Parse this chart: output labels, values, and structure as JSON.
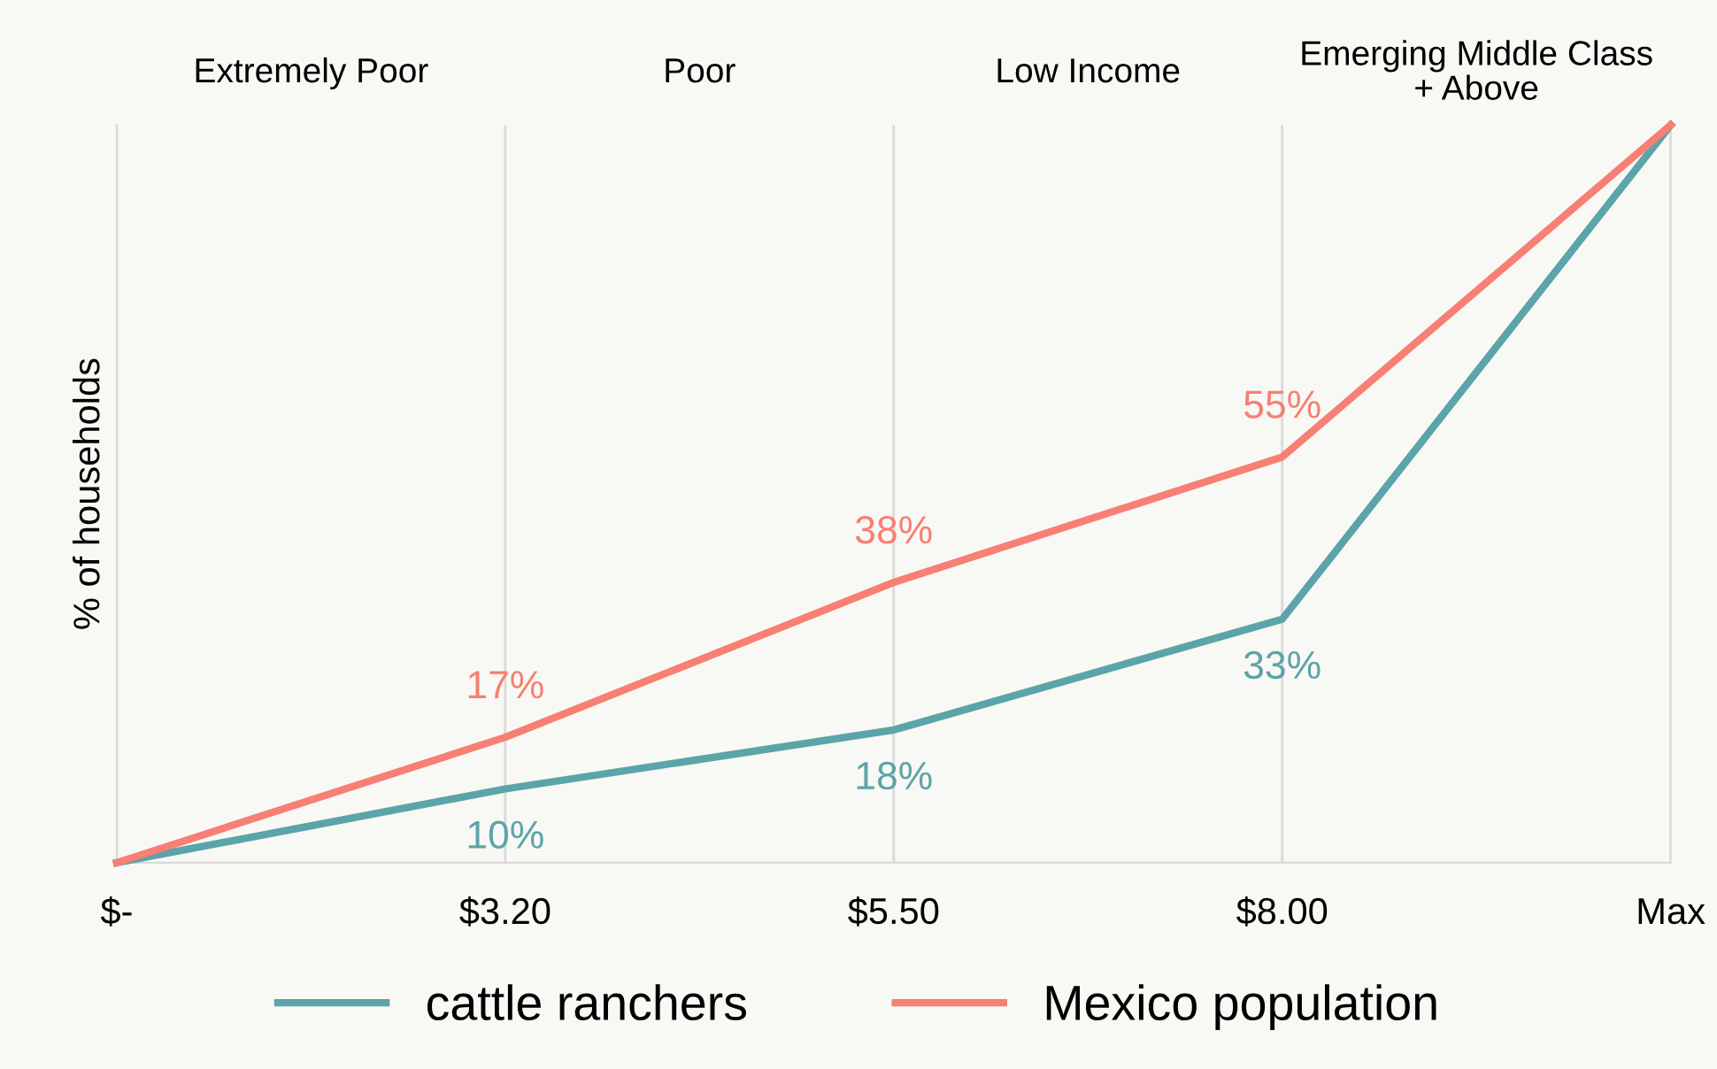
{
  "chart_data": {
    "type": "line",
    "ylabel": "% of households",
    "ylim": [
      0,
      100
    ],
    "tick_labels": "x",
    "categories": [
      "$-",
      "$3.20",
      "$5.50",
      "$8.00",
      "Max"
    ],
    "series": [
      {
        "name": "cattle ranchers",
        "color": "#5ba4a9",
        "values": [
          0,
          10,
          18,
          33,
          100
        ],
        "value_labels": [
          null,
          "10%",
          "18%",
          "33%",
          null
        ]
      },
      {
        "name": "Mexico population",
        "color": "#f77f73",
        "values": [
          0,
          17,
          38,
          55,
          100
        ],
        "value_labels": [
          null,
          "17%",
          "38%",
          "55%",
          null
        ]
      }
    ],
    "annotations": [
      "Extremely Poor",
      "Poor",
      "Low Income",
      "Emerging Middle Class\n+ Above"
    ],
    "grid": "x",
    "legend": "bottom",
    "marker": "none",
    "line_style": "solid"
  }
}
